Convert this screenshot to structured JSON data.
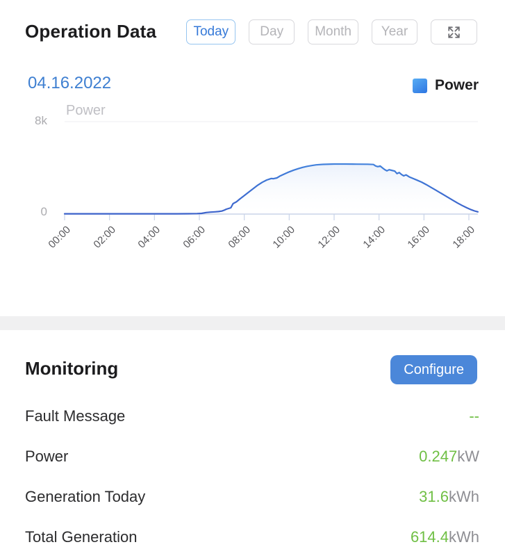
{
  "header": {
    "title": "Operation Data",
    "tabs": [
      {
        "label": "Today",
        "active": true
      },
      {
        "label": "Day",
        "active": false
      },
      {
        "label": "Month",
        "active": false
      },
      {
        "label": "Year",
        "active": false
      }
    ]
  },
  "chart": {
    "date": "04.16.2022",
    "legend": {
      "label": "Power",
      "color": "#3b8af0"
    },
    "title": "Power",
    "y_axis": {
      "top_label": "8k",
      "bottom_label": "0"
    }
  },
  "chart_data": {
    "type": "area",
    "title": "Power",
    "xlabel": "",
    "ylabel": "",
    "legend_position": "top-right",
    "grid": "top-gridline-only",
    "x_ticks": [
      "00:00",
      "02:00",
      "04:00",
      "06:00",
      "08:00",
      "10:00",
      "12:00",
      "14:00",
      "16:00",
      "18:00"
    ],
    "x_tick_hours": [
      0,
      2,
      4,
      6,
      8,
      10,
      12,
      14,
      16,
      18
    ],
    "x_range_hours": [
      0,
      18.4
    ],
    "y_range": [
      0,
      8000
    ],
    "series": [
      {
        "name": "Power",
        "unit": "W",
        "points": [
          [
            0,
            25
          ],
          [
            0.5,
            25
          ],
          [
            1,
            25
          ],
          [
            1.5,
            25
          ],
          [
            2,
            25
          ],
          [
            2.5,
            25
          ],
          [
            3,
            25
          ],
          [
            3.5,
            25
          ],
          [
            4,
            25
          ],
          [
            4.5,
            25
          ],
          [
            5,
            25
          ],
          [
            5.5,
            30
          ],
          [
            5.9,
            40
          ],
          [
            6.1,
            60
          ],
          [
            6.3,
            130
          ],
          [
            6.5,
            170
          ],
          [
            6.7,
            195
          ],
          [
            6.85,
            215
          ],
          [
            7,
            260
          ],
          [
            7.1,
            330
          ],
          [
            7.2,
            420
          ],
          [
            7.3,
            480
          ],
          [
            7.4,
            540
          ],
          [
            7.5,
            900
          ],
          [
            7.65,
            1060
          ],
          [
            7.8,
            1300
          ],
          [
            8,
            1600
          ],
          [
            8.2,
            1900
          ],
          [
            8.4,
            2200
          ],
          [
            8.6,
            2500
          ],
          [
            8.8,
            2750
          ],
          [
            9,
            2950
          ],
          [
            9.2,
            3080
          ],
          [
            9.3,
            3060
          ],
          [
            9.45,
            3130
          ],
          [
            9.6,
            3300
          ],
          [
            9.8,
            3480
          ],
          [
            10,
            3650
          ],
          [
            10.2,
            3800
          ],
          [
            10.4,
            3930
          ],
          [
            10.6,
            4040
          ],
          [
            10.8,
            4130
          ],
          [
            11,
            4200
          ],
          [
            11.2,
            4260
          ],
          [
            11.5,
            4300
          ],
          [
            12,
            4330
          ],
          [
            12.5,
            4330
          ],
          [
            13,
            4320
          ],
          [
            13.5,
            4310
          ],
          [
            13.75,
            4290
          ],
          [
            13.85,
            4160
          ],
          [
            13.95,
            4100
          ],
          [
            14.05,
            4160
          ],
          [
            14.15,
            4000
          ],
          [
            14.25,
            3850
          ],
          [
            14.35,
            3740
          ],
          [
            14.45,
            3840
          ],
          [
            14.55,
            3790
          ],
          [
            14.7,
            3720
          ],
          [
            14.8,
            3500
          ],
          [
            14.9,
            3590
          ],
          [
            15,
            3420
          ],
          [
            15.1,
            3310
          ],
          [
            15.2,
            3390
          ],
          [
            15.35,
            3210
          ],
          [
            15.5,
            3090
          ],
          [
            15.7,
            2930
          ],
          [
            15.9,
            2760
          ],
          [
            16.1,
            2550
          ],
          [
            16.3,
            2330
          ],
          [
            16.5,
            2100
          ],
          [
            16.7,
            1870
          ],
          [
            16.9,
            1640
          ],
          [
            17.1,
            1410
          ],
          [
            17.3,
            1180
          ],
          [
            17.5,
            950
          ],
          [
            17.7,
            740
          ],
          [
            17.9,
            550
          ],
          [
            18.1,
            380
          ],
          [
            18.25,
            270
          ],
          [
            18.4,
            190
          ]
        ]
      }
    ]
  },
  "monitoring": {
    "title": "Monitoring",
    "configure_label": "Configure",
    "rows": [
      {
        "label": "Fault Message",
        "value": "--",
        "unit": ""
      },
      {
        "label": "Power",
        "value": "0.247",
        "unit": "kW"
      },
      {
        "label": "Generation Today",
        "value": "31.6",
        "unit": "kWh"
      },
      {
        "label": "Total Generation",
        "value": "614.4",
        "unit": "kWh"
      }
    ]
  },
  "colors": {
    "accent_blue": "#3579d8",
    "button_blue": "#4b87d9",
    "value_green": "#6fbf44",
    "unit_gray": "#8e8e93",
    "line_gradient_top": "#5db0f2",
    "line_gradient_bottom": "#3d63cb",
    "axis_gray_blue": "#c9d3e8",
    "separator_gray": "#f0f0f1"
  }
}
